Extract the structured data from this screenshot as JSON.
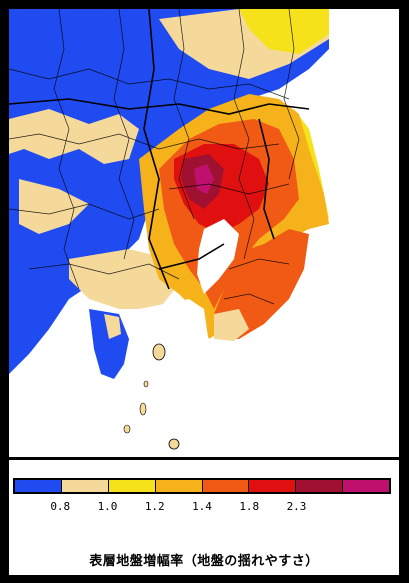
{
  "legend": {
    "title": "表層地盤増幅率（地盤の揺れやすさ）",
    "ticks": [
      "0.8",
      "1.0",
      "1.2",
      "1.4",
      "1.8",
      "2.3"
    ],
    "colors": [
      "#1f4bf0",
      "#f5d99a",
      "#f5e21a",
      "#f5b21a",
      "#f05a14",
      "#e01010",
      "#a01030",
      "#c0106e"
    ]
  },
  "palette": {
    "sea": "#ffffff",
    "low": "#1f4bf0",
    "low_mid": "#f5d99a",
    "mid": "#f5e21a",
    "mid_high": "#f5b21a",
    "high": "#f05a14",
    "higher": "#e01010",
    "very_high": "#a01030",
    "max": "#c0106e",
    "boundary": "#000000"
  }
}
